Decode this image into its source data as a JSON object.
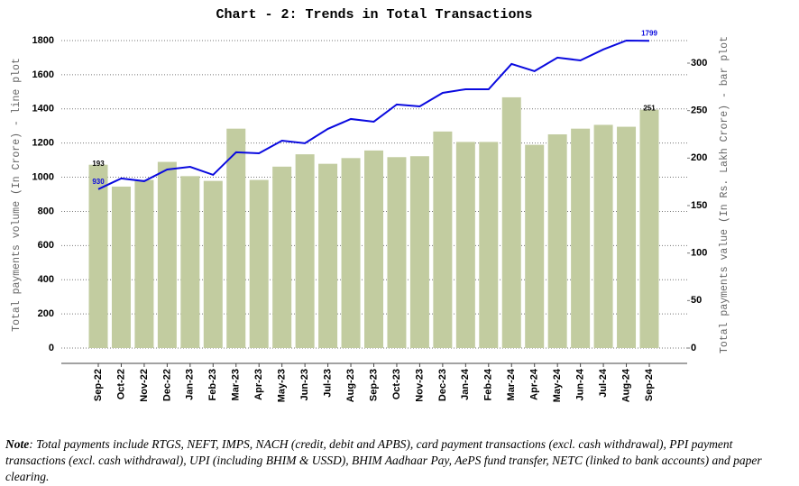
{
  "chart_data": {
    "type": "bar-line",
    "title": "Chart - 2: Trends in Total Transactions",
    "y_label": "Total payments volume (In Crore) - line plot",
    "y2_label": "Total payments value (In Rs. Lakh Crore) - bar plot",
    "categories": [
      "Sep-22",
      "Oct-22",
      "Nov-22",
      "Dec-22",
      "Jan-23",
      "Feb-23",
      "Mar-23",
      "Apr-23",
      "May-23",
      "Jun-23",
      "Jul-23",
      "Aug-23",
      "Sep-23",
      "Oct-23",
      "Nov-23",
      "Dec-23",
      "Jan-24",
      "Feb-24",
      "Mar-24",
      "Apr-24",
      "May-24",
      "Jun-24",
      "Jul-24",
      "Aug-24",
      "Sep-24"
    ],
    "series": [
      {
        "type": "bar",
        "axis": "y2",
        "color": "#c2cca0",
        "data_labels": [
          0,
          24
        ],
        "values": [
          193,
          170,
          177,
          196,
          181,
          176,
          231,
          177,
          191,
          204,
          194,
          200,
          208,
          201,
          202,
          228,
          217,
          217,
          264,
          214,
          225,
          231,
          235,
          233,
          251
        ]
      },
      {
        "type": "line",
        "axis": "y",
        "color": "#0a0adf",
        "data_labels": [
          0,
          24
        ],
        "values": [
          930,
          993,
          977,
          1045,
          1061,
          1014,
          1146,
          1140,
          1214,
          1199,
          1283,
          1341,
          1325,
          1426,
          1415,
          1494,
          1515,
          1515,
          1663,
          1621,
          1700,
          1684,
          1748,
          1800,
          1799
        ]
      }
    ],
    "ylim": [
      0,
      1800
    ],
    "yticks": [
      0,
      200,
      400,
      600,
      800,
      1000,
      1200,
      1400,
      1600,
      1800
    ],
    "y2lim": [
      0,
      300
    ],
    "y2ticks": [
      0,
      50,
      100,
      150,
      200,
      250,
      300
    ],
    "grid": true
  },
  "note": {
    "label": "Note",
    "text": ": Total payments include RTGS, NEFT, IMPS, NACH (credit, debit and APBS), card payment transactions (excl. cash withdrawal), PPI payment transactions (excl. cash withdrawal), UPI (including BHIM & USSD), BHIM Aadhaar Pay, AePS fund transfer, NETC (linked to bank accounts) and paper clearing."
  }
}
